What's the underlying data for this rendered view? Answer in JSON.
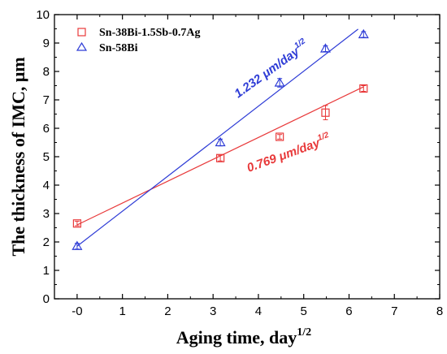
{
  "chart_data": {
    "type": "scatter",
    "title": "",
    "xlabel": "Aging time, day",
    "xlabel_sup": "1/2",
    "ylabel": "The thickness of IMC, μm",
    "xlim": [
      -0.5,
      8
    ],
    "ylim": [
      0,
      10
    ],
    "xticks": [
      "-0",
      "1",
      "2",
      "3",
      "4",
      "5",
      "6",
      "7",
      "8"
    ],
    "yticks": [
      "0",
      "1",
      "2",
      "3",
      "4",
      "5",
      "6",
      "7",
      "8",
      "9",
      "10"
    ],
    "xtick_values": [
      0,
      1,
      2,
      3,
      4,
      5,
      6,
      7,
      8
    ],
    "ytick_values": [
      0,
      1,
      2,
      3,
      4,
      5,
      6,
      7,
      8,
      9,
      10
    ],
    "grid": false,
    "legend_position": "top-left",
    "series": [
      {
        "name": "Sn-38Bi-1.5Sb-0.7Ag",
        "marker": "square",
        "color": "#e8393a",
        "x": [
          0,
          3.16,
          4.47,
          5.48,
          6.32
        ],
        "y": [
          2.65,
          4.95,
          5.7,
          6.55,
          7.4
        ],
        "err": [
          0.08,
          0.1,
          0.08,
          0.25,
          0.1
        ],
        "fit": {
          "slope": 0.769,
          "intercept": 2.6,
          "x_range": [
            0,
            6.32
          ]
        },
        "annotation": "0.769 μm/day",
        "annotation_sup": "1/2"
      },
      {
        "name": "Sn-58Bi",
        "marker": "triangle",
        "color": "#2e3cd6",
        "x": [
          0,
          3.16,
          4.47,
          5.48,
          6.32
        ],
        "y": [
          1.85,
          5.5,
          7.6,
          8.8,
          9.3
        ],
        "err": [
          0.1,
          0.12,
          0.15,
          0.1,
          0.1
        ],
        "fit": {
          "slope": 1.232,
          "intercept": 1.85,
          "x_range": [
            0,
            6.2
          ]
        },
        "annotation": "1.232 μm/day",
        "annotation_sup": "1/2"
      }
    ]
  }
}
